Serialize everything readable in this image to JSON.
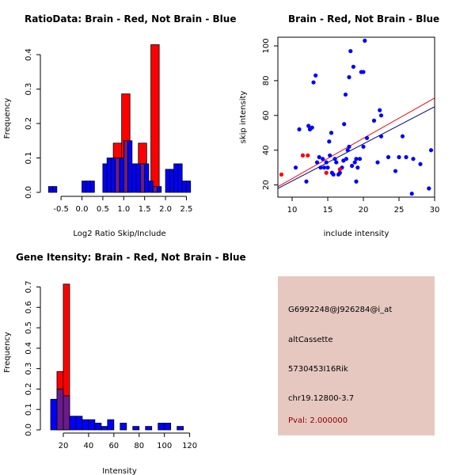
{
  "chart_data": [
    {
      "type": "histogram",
      "title": "RatioData: Brain - Red, Not Brain - Blue",
      "xlabel": "Log2 Ratio Skip/Include",
      "ylabel": "Frequency",
      "xlim": [
        -0.9,
        2.7
      ],
      "ylim": [
        0,
        0.43
      ],
      "xticks": [
        "-0.5",
        "0.0",
        "0.5",
        "1.0",
        "1.5",
        "2.0",
        "2.5"
      ],
      "xtick_values": [
        -0.5,
        0,
        0.5,
        1.0,
        1.5,
        2.0,
        2.5
      ],
      "yticks": [
        "0.0",
        "0.1",
        "0.2",
        "0.3",
        "0.4"
      ],
      "ytick_values": [
        0,
        0.1,
        0.2,
        0.3,
        0.4
      ],
      "series": [
        {
          "name": "Not Brain",
          "color": "#0000ff",
          "bins": [
            [
              -0.8,
              -0.7,
              0.017
            ],
            [
              -0.7,
              -0.6,
              0.017
            ],
            [
              0.0,
              0.1,
              0.033
            ],
            [
              0.1,
              0.2,
              0.033
            ],
            [
              0.2,
              0.3,
              0.033
            ],
            [
              0.5,
              0.6,
              0.083
            ],
            [
              0.6,
              0.7,
              0.1
            ],
            [
              0.7,
              0.8,
              0.1
            ],
            [
              0.8,
              0.9,
              0.1
            ],
            [
              0.9,
              1.0,
              0.1
            ],
            [
              1.0,
              1.1,
              0.15
            ],
            [
              1.1,
              1.2,
              0.15
            ],
            [
              1.2,
              1.3,
              0.083
            ],
            [
              1.3,
              1.4,
              0.083
            ],
            [
              1.4,
              1.5,
              0.083
            ],
            [
              1.5,
              1.6,
              0.083
            ],
            [
              1.6,
              1.7,
              0.033
            ],
            [
              1.7,
              1.8,
              0.017
            ],
            [
              1.8,
              1.9,
              0.017
            ],
            [
              2.0,
              2.1,
              0.067
            ],
            [
              2.1,
              2.2,
              0.067
            ],
            [
              2.2,
              2.3,
              0.083
            ],
            [
              2.3,
              2.4,
              0.083
            ],
            [
              2.4,
              2.5,
              0.033
            ],
            [
              2.5,
              2.6,
              0.033
            ]
          ]
        },
        {
          "name": "Brain",
          "color": "#ff0000",
          "bins": [
            [
              0.75,
              0.95,
              0.143
            ],
            [
              0.95,
              1.15,
              0.286
            ],
            [
              1.35,
              1.55,
              0.143
            ],
            [
              1.65,
              1.85,
              0.429
            ]
          ]
        }
      ],
      "overlap_color": "#6a1b8a"
    },
    {
      "type": "scatter",
      "title": "Brain - Red, Not Brain - Blue",
      "xlabel": "include intensity",
      "ylabel": "skip intensity",
      "xlim": [
        8,
        30
      ],
      "ylim": [
        13,
        105
      ],
      "xticks": [
        "10",
        "15",
        "20",
        "25",
        "30"
      ],
      "xtick_values": [
        10,
        15,
        20,
        25,
        30
      ],
      "yticks": [
        "20",
        "40",
        "60",
        "80",
        "100"
      ],
      "ytick_values": [
        20,
        40,
        60,
        80,
        100
      ],
      "series": [
        {
          "name": "Not Brain",
          "color": "#0000ff",
          "points": [
            [
              10.5,
              30
            ],
            [
              11,
              52
            ],
            [
              11.5,
              37
            ],
            [
              12,
              22
            ],
            [
              12.3,
              54
            ],
            [
              12.5,
              52
            ],
            [
              12.8,
              53
            ],
            [
              13,
              79
            ],
            [
              13.3,
              83
            ],
            [
              13.5,
              33
            ],
            [
              13.8,
              36
            ],
            [
              14,
              30
            ],
            [
              14.3,
              35
            ],
            [
              14.5,
              30
            ],
            [
              14.8,
              33
            ],
            [
              15,
              30
            ],
            [
              15.2,
              45
            ],
            [
              15.3,
              37
            ],
            [
              15.5,
              50
            ],
            [
              15.6,
              27
            ],
            [
              15.8,
              26
            ],
            [
              16,
              35
            ],
            [
              16.2,
              33
            ],
            [
              16.5,
              26
            ],
            [
              16.7,
              27
            ],
            [
              17,
              30
            ],
            [
              17.2,
              34
            ],
            [
              17.3,
              55
            ],
            [
              17.5,
              72
            ],
            [
              17.6,
              35
            ],
            [
              17.8,
              40
            ],
            [
              18,
              82
            ],
            [
              18,
              42
            ],
            [
              18.2,
              97
            ],
            [
              18.4,
              31
            ],
            [
              18.6,
              88
            ],
            [
              18.8,
              33
            ],
            [
              19,
              22
            ],
            [
              19,
              35
            ],
            [
              19.2,
              30
            ],
            [
              19.5,
              35
            ],
            [
              19.7,
              85
            ],
            [
              20,
              85
            ],
            [
              20,
              42
            ],
            [
              20.2,
              103
            ],
            [
              20.5,
              47
            ],
            [
              21.5,
              57
            ],
            [
              22,
              33
            ],
            [
              22.3,
              63
            ],
            [
              22.5,
              60
            ],
            [
              22.5,
              48
            ],
            [
              23.5,
              36
            ],
            [
              24.5,
              28
            ],
            [
              25,
              36
            ],
            [
              25.5,
              48
            ],
            [
              26,
              36
            ],
            [
              26.8,
              15
            ],
            [
              27,
              35
            ],
            [
              28,
              32
            ],
            [
              29.2,
              18
            ],
            [
              29.5,
              40
            ]
          ]
        },
        {
          "name": "Brain",
          "color": "#ff0000",
          "points": [
            [
              8.5,
              26
            ],
            [
              11.5,
              37
            ],
            [
              12.2,
              37
            ],
            [
              14.8,
              27
            ],
            [
              16.7,
              29
            ]
          ]
        }
      ],
      "fit_lines": [
        {
          "name": "Brain",
          "color": "#ff0000",
          "x": [
            8,
            30
          ],
          "y": [
            19,
            70
          ]
        },
        {
          "name": "Not Brain",
          "color": "#000080",
          "x": [
            8,
            30
          ],
          "y": [
            18,
            65
          ]
        }
      ]
    },
    {
      "type": "histogram",
      "title": "Gene Itensity: Brain - Red, Not Brain - Blue",
      "xlabel": "Intensity",
      "ylabel": "Frequency",
      "xlim": [
        5,
        124
      ],
      "ylim": [
        0,
        0.76
      ],
      "xticks": [
        "20",
        "40",
        "60",
        "80",
        "100",
        "120"
      ],
      "xtick_values": [
        20,
        40,
        60,
        80,
        100,
        120
      ],
      "yticks": [
        "0.0",
        "0.1",
        "0.2",
        "0.3",
        "0.4",
        "0.5",
        "0.6",
        "0.7"
      ],
      "ytick_values": [
        0,
        0.1,
        0.2,
        0.3,
        0.4,
        0.5,
        0.6,
        0.7
      ],
      "series": [
        {
          "name": "Not Brain",
          "color": "#0000ff",
          "bins": [
            [
              10,
              15,
              0.15
            ],
            [
              15,
              20,
              0.2
            ],
            [
              20,
              25,
              0.167
            ],
            [
              25,
              30,
              0.067
            ],
            [
              30,
              35,
              0.067
            ],
            [
              35,
              40,
              0.05
            ],
            [
              40,
              45,
              0.05
            ],
            [
              45,
              50,
              0.033
            ],
            [
              50,
              55,
              0.017
            ],
            [
              55,
              60,
              0.05
            ],
            [
              65,
              70,
              0.033
            ],
            [
              75,
              80,
              0.017
            ],
            [
              85,
              90,
              0.017
            ],
            [
              95,
              100,
              0.033
            ],
            [
              100,
              105,
              0.033
            ],
            [
              110,
              115,
              0.017
            ]
          ]
        },
        {
          "name": "Brain",
          "color": "#ff0000",
          "bins": [
            [
              15,
              20,
              0.286
            ],
            [
              20,
              25,
              0.714
            ]
          ]
        }
      ],
      "overlap_color": "#6a1b8a"
    }
  ],
  "info_panel": {
    "background": "#e6c8c0",
    "probe_id": "G6992248@J926284@i_at",
    "event_type": "altCassette",
    "gene": "5730453I16Rik",
    "location": "chr19.12800-3.7",
    "pval": "Pval: 2.000000"
  }
}
